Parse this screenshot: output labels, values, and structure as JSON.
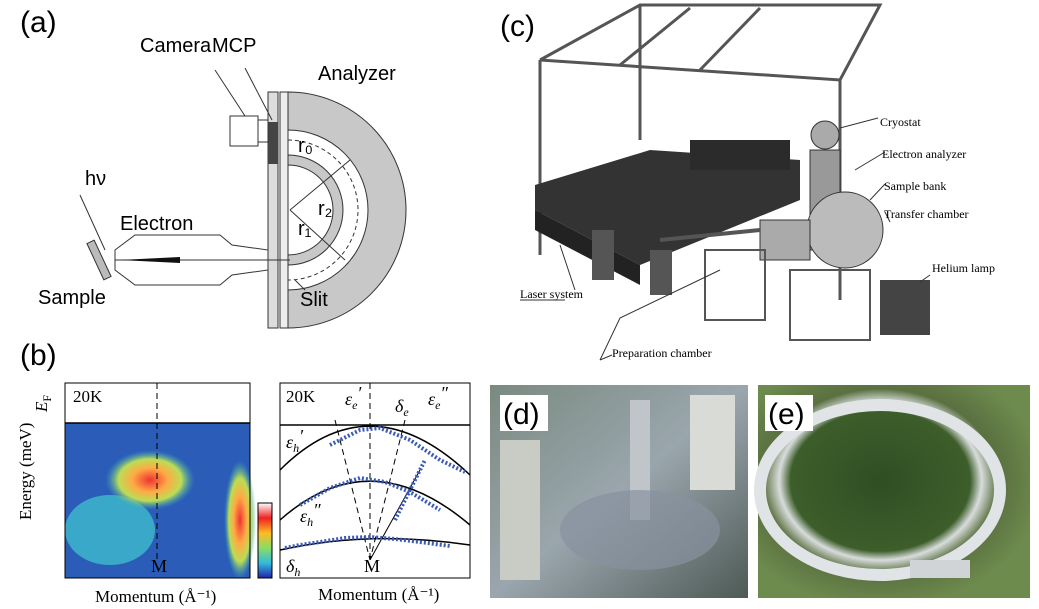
{
  "panel_a": {
    "label": "(a)",
    "camera": "Camera",
    "mcp": "MCP",
    "analyzer": "Analyzer",
    "photon": "hν",
    "electron": "Electron",
    "sample": "Sample",
    "slit": "Slit",
    "radius_0": "r₀",
    "radius_1": "r₁",
    "radius_2": "r₂"
  },
  "panel_b": {
    "label": "(b)",
    "left": {
      "temperature": "20K",
      "fermi_level": {
        "base": "E",
        "sub": "F"
      },
      "y_label": "Energy (meV)",
      "point": "M",
      "x_label": "Momentum (Å⁻¹)"
    },
    "right": {
      "temperature": "20K",
      "point": "M",
      "x_label": "Momentum (Å⁻¹)",
      "bands": [
        {
          "base": "ε",
          "sub": "e",
          "prime": "′"
        },
        {
          "base": "δ",
          "sub": "e"
        },
        {
          "base": "ε",
          "sub": "e",
          "prime": "″"
        },
        {
          "base": "ε",
          "sub": "h",
          "prime": "′"
        },
        {
          "base": "ε",
          "sub": "h",
          "prime": "″"
        },
        {
          "base": "δ",
          "sub": "h"
        }
      ]
    }
  },
  "panel_c": {
    "label": "(c)",
    "cryostat": "Cryostat",
    "electron_analyzer": "Electron analyzer",
    "sample_bank": "Sample bank",
    "transfer_chamber": "Transfer chamber",
    "helium_lamp": "Helium lamp",
    "laser_system": "Laser system",
    "preparation_chamber": "Preparation chamber"
  },
  "panel_d": {
    "label": "(d)"
  },
  "panel_e": {
    "label": "(e)"
  }
}
